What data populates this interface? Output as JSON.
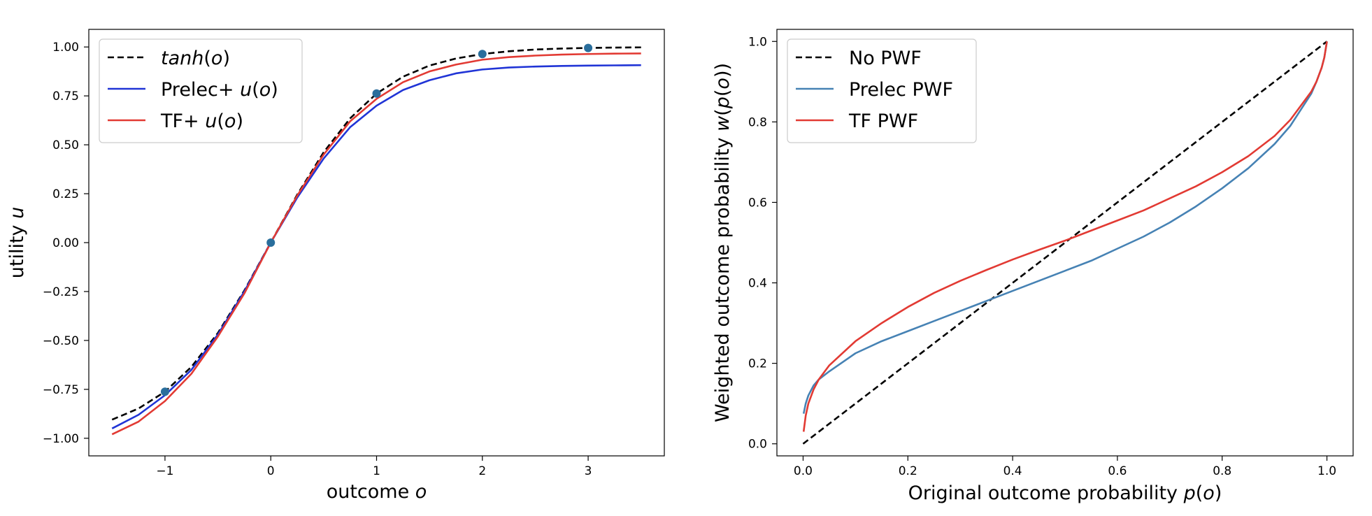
{
  "chart_data": [
    {
      "type": "line",
      "xlabel": "outcome o",
      "ylabel": "utility u",
      "xlim": [
        -1.72,
        3.72
      ],
      "ylim": [
        -1.09,
        1.09
      ],
      "xticks": [
        -1,
        0,
        1,
        2,
        3
      ],
      "xtick_labels": [
        "−1",
        "0",
        "1",
        "2",
        "3"
      ],
      "yticks": [
        -1.0,
        -0.75,
        -0.5,
        -0.25,
        0.0,
        0.25,
        0.5,
        0.75,
        1.0
      ],
      "ytick_labels": [
        "−1.00",
        "−0.75",
        "−0.50",
        "−0.25",
        "0.00",
        "0.25",
        "0.50",
        "0.75",
        "1.00"
      ],
      "grid": false,
      "legend_position": "top-left",
      "series": [
        {
          "name": "tanh(o)",
          "color": "#000000",
          "dash": "dashed",
          "x": [
            -1.5,
            -1.25,
            -1.0,
            -0.75,
            -0.5,
            -0.25,
            0.0,
            0.25,
            0.5,
            0.75,
            1.0,
            1.25,
            1.5,
            1.75,
            2.0,
            2.25,
            2.5,
            2.75,
            3.0,
            3.25,
            3.5
          ],
          "y": [
            -0.905,
            -0.848,
            -0.762,
            -0.635,
            -0.462,
            -0.245,
            0.0,
            0.245,
            0.462,
            0.635,
            0.762,
            0.848,
            0.905,
            0.941,
            0.964,
            0.978,
            0.987,
            0.992,
            0.995,
            0.997,
            0.998
          ]
        },
        {
          "name": "Prelec+ u(o)",
          "color": "#2034d6",
          "dash": "solid",
          "x": [
            -1.5,
            -1.25,
            -1.0,
            -0.75,
            -0.5,
            -0.25,
            0.0,
            0.25,
            0.5,
            0.75,
            1.0,
            1.25,
            1.5,
            1.75,
            2.0,
            2.25,
            2.5,
            2.75,
            3.0,
            3.25,
            3.5
          ],
          "y": [
            -0.95,
            -0.88,
            -0.78,
            -0.65,
            -0.47,
            -0.25,
            0.0,
            0.23,
            0.43,
            0.59,
            0.7,
            0.78,
            0.83,
            0.865,
            0.885,
            0.895,
            0.9,
            0.903,
            0.905,
            0.906,
            0.907
          ]
        },
        {
          "name": "TF+ u(o)",
          "color": "#e23a33",
          "dash": "solid",
          "x": [
            -1.5,
            -1.25,
            -1.0,
            -0.75,
            -0.5,
            -0.25,
            0.0,
            0.25,
            0.5,
            0.75,
            1.0,
            1.25,
            1.5,
            1.75,
            2.0,
            2.25,
            2.5,
            2.75,
            3.0,
            3.25,
            3.5
          ],
          "y": [
            -0.98,
            -0.915,
            -0.81,
            -0.67,
            -0.48,
            -0.26,
            0.0,
            0.24,
            0.45,
            0.62,
            0.735,
            0.82,
            0.875,
            0.91,
            0.935,
            0.948,
            0.956,
            0.961,
            0.964,
            0.966,
            0.967
          ]
        },
        {
          "name": "",
          "type": "scatter",
          "color": "#2a6e9c",
          "x": [
            -1,
            0,
            1,
            2,
            3
          ],
          "y": [
            -0.762,
            0.0,
            0.762,
            0.964,
            0.995
          ]
        }
      ]
    },
    {
      "type": "line",
      "xlabel": "Original outcome probability p(o)",
      "ylabel": "Weighted outcome probability w(p(o))",
      "xlim": [
        -0.05,
        1.05
      ],
      "ylim": [
        -0.03,
        1.03
      ],
      "xticks": [
        0.0,
        0.2,
        0.4,
        0.6,
        0.8,
        1.0
      ],
      "xtick_labels": [
        "0.0",
        "0.2",
        "0.4",
        "0.6",
        "0.8",
        "1.0"
      ],
      "yticks": [
        0.0,
        0.2,
        0.4,
        0.6,
        0.8,
        1.0
      ],
      "ytick_labels": [
        "0.0",
        "0.2",
        "0.4",
        "0.6",
        "0.8",
        "1.0"
      ],
      "grid": false,
      "legend_position": "top-left",
      "series": [
        {
          "name": "No PWF",
          "color": "#000000",
          "dash": "dashed",
          "x": [
            0.0,
            1.0
          ],
          "y": [
            0.0,
            1.0
          ]
        },
        {
          "name": "Prelec PWF",
          "color": "#4682b4",
          "dash": "solid",
          "x": [
            0.001,
            0.005,
            0.01,
            0.02,
            0.03,
            0.05,
            0.1,
            0.15,
            0.2,
            0.25,
            0.3,
            0.35,
            0.4,
            0.45,
            0.5,
            0.55,
            0.6,
            0.65,
            0.7,
            0.75,
            0.8,
            0.85,
            0.9,
            0.93,
            0.95,
            0.97,
            0.98,
            0.99,
            0.995,
            1.0
          ],
          "y": [
            0.075,
            0.1,
            0.12,
            0.145,
            0.16,
            0.18,
            0.225,
            0.255,
            0.28,
            0.305,
            0.33,
            0.355,
            0.38,
            0.405,
            0.43,
            0.455,
            0.485,
            0.515,
            0.55,
            0.59,
            0.635,
            0.685,
            0.745,
            0.79,
            0.83,
            0.87,
            0.9,
            0.935,
            0.96,
            1.0
          ]
        },
        {
          "name": "TF PWF",
          "color": "#e23a33",
          "dash": "solid",
          "x": [
            0.001,
            0.005,
            0.01,
            0.02,
            0.03,
            0.05,
            0.1,
            0.15,
            0.2,
            0.25,
            0.3,
            0.35,
            0.4,
            0.45,
            0.5,
            0.55,
            0.6,
            0.65,
            0.7,
            0.75,
            0.8,
            0.85,
            0.9,
            0.93,
            0.95,
            0.97,
            0.98,
            0.99,
            0.995,
            1.0
          ],
          "y": [
            0.03,
            0.07,
            0.1,
            0.135,
            0.16,
            0.195,
            0.255,
            0.3,
            0.34,
            0.375,
            0.405,
            0.432,
            0.458,
            0.482,
            0.505,
            0.53,
            0.555,
            0.58,
            0.61,
            0.64,
            0.675,
            0.715,
            0.765,
            0.805,
            0.84,
            0.875,
            0.9,
            0.935,
            0.96,
            1.0
          ]
        }
      ]
    }
  ]
}
